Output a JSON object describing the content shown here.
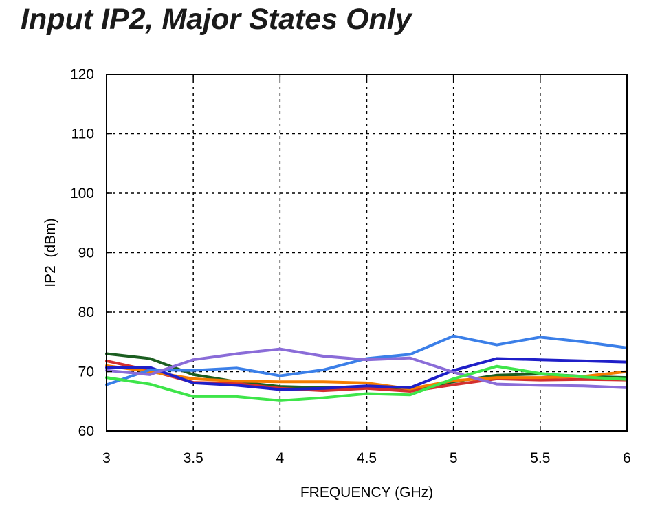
{
  "chart_data": {
    "type": "line",
    "title": "Input IP2, Major States Only",
    "xlabel": "FREQUENCY (GHz)",
    "ylabel": "IP2  (dBm)",
    "xlim": [
      3,
      6
    ],
    "ylim": [
      60,
      120
    ],
    "xticks": [
      3,
      3.5,
      4,
      4.5,
      5,
      5.5,
      6
    ],
    "xtick_labels": [
      "3",
      "3.5",
      "4",
      "4.5",
      "5",
      "5.5",
      "6"
    ],
    "yticks": [
      60,
      70,
      80,
      90,
      100,
      110,
      120
    ],
    "ytick_labels": [
      "60",
      "70",
      "80",
      "90",
      "100",
      "110",
      "120"
    ],
    "grid": true,
    "x": [
      3,
      3.25,
      3.5,
      3.75,
      4,
      4.25,
      4.5,
      4.75,
      5,
      5.25,
      5.5,
      5.75,
      6
    ],
    "series": [
      {
        "color": "#1b5e20",
        "values": [
          73.0,
          72.2,
          69.5,
          68.3,
          67.5,
          67.3,
          67.5,
          66.9,
          68.3,
          69.4,
          69.6,
          69.2,
          69.0
        ]
      },
      {
        "color": "#d32f2f",
        "values": [
          71.8,
          70.2,
          68.2,
          68.0,
          67.2,
          66.8,
          67.2,
          66.7,
          67.8,
          68.8,
          68.6,
          68.7,
          68.6
        ]
      },
      {
        "color": "#f57c00",
        "values": [
          71.0,
          70.0,
          68.8,
          68.4,
          68.3,
          68.3,
          68.1,
          67.1,
          68.5,
          69.0,
          69.0,
          69.2,
          70.0
        ]
      },
      {
        "color": "#1f1fc8",
        "values": [
          70.7,
          70.7,
          68.1,
          67.7,
          67.0,
          67.2,
          67.6,
          67.3,
          70.2,
          72.2,
          72.0,
          71.8,
          71.6
        ]
      },
      {
        "color": "#3b7fe8",
        "values": [
          67.8,
          70.3,
          70.2,
          70.6,
          69.3,
          70.3,
          72.2,
          72.9,
          76.0,
          74.5,
          75.8,
          75.0,
          74.0
        ]
      },
      {
        "color": "#8a6cd8",
        "values": [
          70.2,
          69.5,
          72.0,
          73.0,
          73.8,
          72.6,
          72.0,
          72.3,
          69.9,
          67.9,
          67.7,
          67.6,
          67.3
        ]
      },
      {
        "color": "#3ee54a",
        "values": [
          69.0,
          67.9,
          65.8,
          65.8,
          65.1,
          65.6,
          66.3,
          66.1,
          68.8,
          70.9,
          69.7,
          69.1,
          68.7
        ]
      }
    ]
  }
}
